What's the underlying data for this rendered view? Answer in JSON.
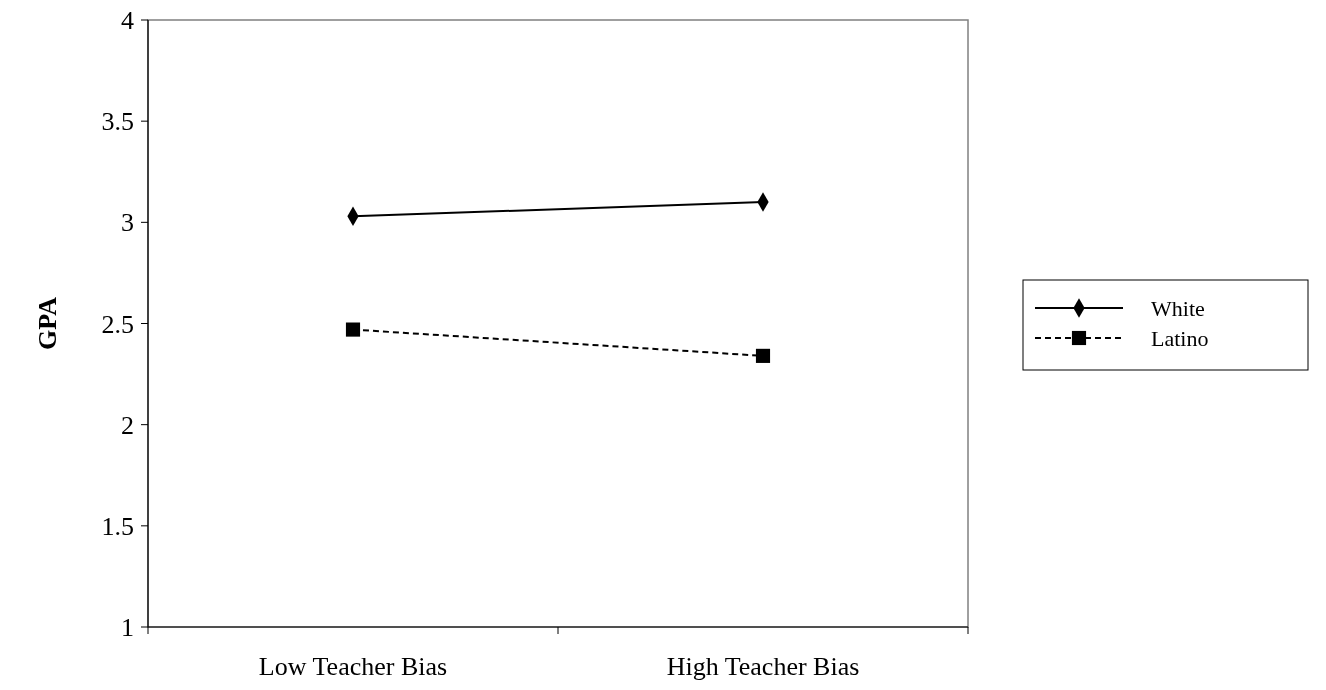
{
  "chart_data": {
    "type": "line",
    "ylabel": "GPA",
    "categories": [
      "Low Teacher Bias",
      "High Teacher Bias"
    ],
    "series": [
      {
        "name": "White",
        "color": "#000000",
        "values": [
          3.03,
          3.1
        ],
        "marker": "diamond",
        "line_style": "solid"
      },
      {
        "name": "Latino",
        "color": "#000000",
        "values": [
          2.47,
          2.34
        ],
        "marker": "square",
        "line_style": "dashed"
      }
    ],
    "ylim": [
      1,
      4
    ],
    "yticks": [
      1,
      1.5,
      2,
      2.5,
      3,
      3.5,
      4
    ],
    "grid": false,
    "legend": "right"
  }
}
